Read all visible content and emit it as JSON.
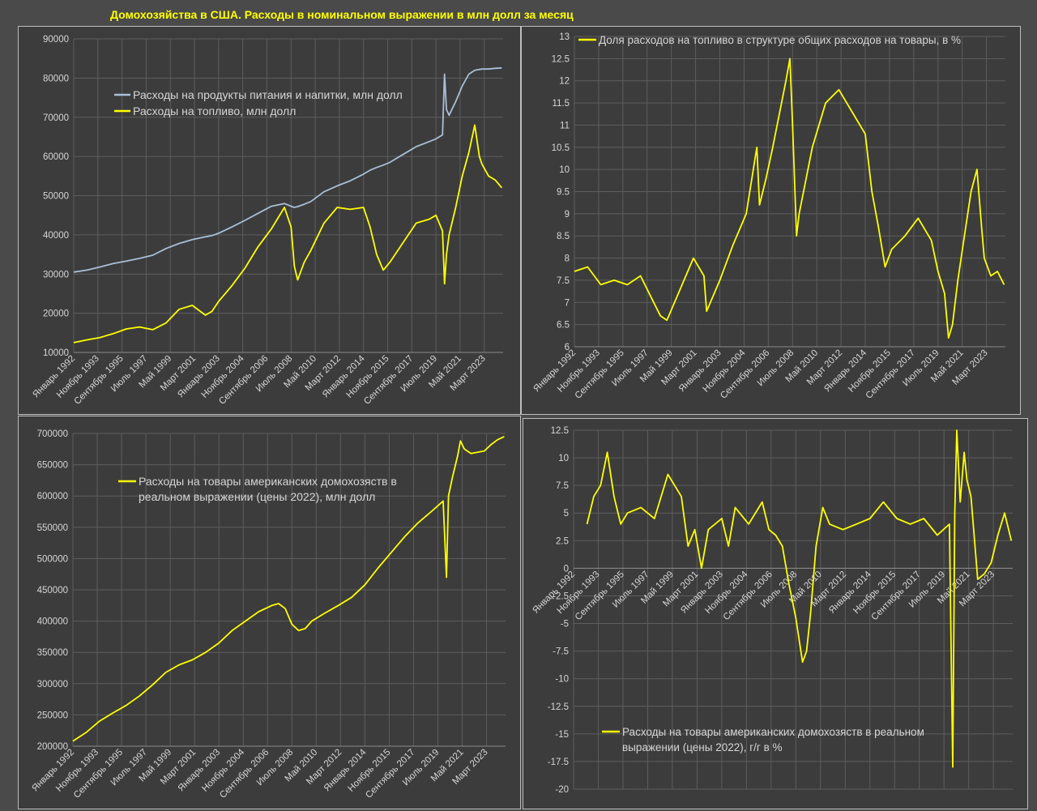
{
  "title": "Домохозяйства в США. Расходы в номинальном выражении в млн долл за месяц",
  "colors": {
    "yellow": "#ffff00",
    "blue": "#a9bfd8",
    "grid": "#5e5e5e",
    "text": "#d6d6d6"
  },
  "chart_data": [
    {
      "type": "line",
      "x_tick_labels": [
        "Январь 1992",
        "Ноябрь 1993",
        "Сентябрь 1995",
        "Июль 1997",
        "Май 1999",
        "Март 2001",
        "Январь 2003",
        "Ноябрь 2004",
        "Сентябрь 2006",
        "Июль 2008",
        "Май 2010",
        "Март 2012",
        "Январь 2014",
        "Ноябрь 2015",
        "Сентябрь 2017",
        "Июль 2019",
        "Май 2021",
        "Март 2023"
      ],
      "x": [
        1992.0,
        1993.0,
        1994.0,
        1995.0,
        1996.0,
        1997.0,
        1998.0,
        1999.0,
        2000.0,
        2001.0,
        2002.0,
        2002.5,
        2003.0,
        2004.0,
        2005.0,
        2006.0,
        2007.0,
        2008.0,
        2008.5,
        2008.75,
        2009.0,
        2009.5,
        2010.0,
        2011.0,
        2012.0,
        2013.0,
        2014.0,
        2014.5,
        2015.0,
        2015.5,
        2016.0,
        2017.0,
        2018.0,
        2019.0,
        2019.5,
        2020.0,
        2020.15,
        2020.3,
        2020.5,
        2021.0,
        2021.5,
        2022.0,
        2022.45,
        2022.8,
        2023.0,
        2023.5,
        2024.0,
        2024.5
      ],
      "ylim": [
        10000,
        90000
      ],
      "yticks": [
        10000,
        20000,
        30000,
        40000,
        50000,
        60000,
        70000,
        80000,
        90000
      ],
      "legend_position": "top-left",
      "series": [
        {
          "name": "Расходы на продукты питания и напитки, млн долл",
          "color": "#a9bfd8",
          "values": [
            30500,
            31000,
            31800,
            32700,
            33300,
            34000,
            34800,
            36500,
            37800,
            38800,
            39500,
            39800,
            40400,
            42000,
            43700,
            45500,
            47300,
            48000,
            47300,
            47000,
            47200,
            47800,
            48500,
            51000,
            52500,
            53800,
            55500,
            56500,
            57200,
            57800,
            58500,
            60500,
            62500,
            63800,
            64500,
            65500,
            81000,
            72000,
            70500,
            74000,
            78000,
            81000,
            82000,
            82200,
            82300,
            82300,
            82500,
            82600
          ]
        },
        {
          "name": "Расходы на топливо, млн долл",
          "color": "#ffff00",
          "values": [
            12500,
            13200,
            13800,
            14800,
            16000,
            16500,
            15800,
            17500,
            21000,
            22000,
            19500,
            20500,
            23000,
            27000,
            31500,
            37000,
            41500,
            47000,
            42000,
            32000,
            28500,
            33000,
            36000,
            43000,
            47000,
            46500,
            47000,
            42000,
            35000,
            31000,
            33000,
            38000,
            43000,
            44000,
            45000,
            41000,
            27500,
            35000,
            40000,
            47000,
            55000,
            61000,
            68000,
            60000,
            58000,
            55000,
            54000,
            52000
          ]
        }
      ]
    },
    {
      "type": "line",
      "x_tick_labels": [
        "Январь 1992",
        "Ноябрь 1993",
        "Сентябрь 1995",
        "Июль 1997",
        "Май 1999",
        "Март 2001",
        "Январь 2003",
        "Ноябрь 2004",
        "Сентябрь 2006",
        "Июль 2008",
        "Май 2010",
        "Март 2012",
        "Январь 2014",
        "Ноябрь 2015",
        "Сентябрь 2017",
        "Июль 2019",
        "Май 2021",
        "Март 2023"
      ],
      "x": [
        1992.0,
        1993.0,
        1994.0,
        1995.0,
        1996.0,
        1997.0,
        1998.0,
        1998.5,
        1999.0,
        2000.0,
        2001.0,
        2001.8,
        2002.0,
        2003.0,
        2004.0,
        2005.0,
        2005.8,
        2006.0,
        2006.5,
        2007.0,
        2008.0,
        2008.3,
        2008.5,
        2008.8,
        2009.0,
        2010.0,
        2011.0,
        2012.0,
        2013.0,
        2014.0,
        2014.5,
        2015.0,
        2015.5,
        2016.0,
        2017.0,
        2018.0,
        2019.0,
        2019.5,
        2020.0,
        2020.3,
        2020.6,
        2021.0,
        2021.5,
        2022.0,
        2022.45,
        2022.8,
        2023.0,
        2023.5,
        2024.0,
        2024.5
      ],
      "ylim": [
        6,
        13
      ],
      "yticks": [
        6,
        6.5,
        7,
        7.5,
        8,
        8.5,
        9,
        9.5,
        10,
        10.5,
        11,
        11.5,
        12,
        12.5,
        13
      ],
      "legend_position": "top",
      "series": [
        {
          "name": "Доля расходов на топливо в структуре общих расходов на товары, в %",
          "color": "#ffff00",
          "values": [
            7.7,
            7.8,
            7.4,
            7.5,
            7.4,
            7.6,
            7.0,
            6.7,
            6.6,
            7.3,
            8.0,
            7.6,
            6.8,
            7.5,
            8.3,
            9.0,
            10.5,
            9.2,
            9.8,
            10.5,
            12.0,
            12.5,
            11.0,
            8.5,
            9.0,
            10.5,
            11.5,
            11.8,
            11.3,
            10.8,
            9.5,
            8.7,
            7.8,
            8.2,
            8.5,
            8.9,
            8.4,
            7.7,
            7.2,
            6.2,
            6.5,
            7.5,
            8.5,
            9.5,
            10.0,
            8.7,
            8.0,
            7.6,
            7.7,
            7.4
          ]
        }
      ]
    },
    {
      "type": "line",
      "x_tick_labels": [
        "Январь 1992",
        "Ноябрь 1993",
        "Сентябрь 1995",
        "Июль 1997",
        "Май 1999",
        "Март 2001",
        "Январь 2003",
        "Ноябрь 2004",
        "Сентябрь 2006",
        "Июль 2008",
        "Май 2010",
        "Март 2012",
        "Январь 2014",
        "Ноябрь 2015",
        "Сентябрь 2017",
        "Июль 2019",
        "Май 2021",
        "Март 2023"
      ],
      "x": [
        1992.0,
        1993.0,
        1994.0,
        1995.0,
        1996.0,
        1997.0,
        1998.0,
        1999.0,
        2000.0,
        2001.0,
        2002.0,
        2003.0,
        2004.0,
        2005.0,
        2006.0,
        2007.0,
        2007.5,
        2008.0,
        2008.5,
        2009.0,
        2009.5,
        2010.0,
        2011.0,
        2012.0,
        2013.0,
        2014.0,
        2015.0,
        2016.0,
        2017.0,
        2018.0,
        2019.0,
        2019.9,
        2020.15,
        2020.3,
        2020.6,
        2021.0,
        2021.2,
        2021.5,
        2022.0,
        2023.0,
        2023.5,
        2024.0,
        2024.5
      ],
      "ylim": [
        200000,
        700000
      ],
      "yticks": [
        200000,
        250000,
        300000,
        350000,
        400000,
        450000,
        500000,
        550000,
        600000,
        650000,
        700000
      ],
      "legend_position": "top-left",
      "series": [
        {
          "name": "Расходы на товары американских домохозяств в реальном выражении (цены 2022), млн долл",
          "color": "#ffff00",
          "values": [
            208000,
            222000,
            240000,
            253000,
            265000,
            280000,
            298000,
            318000,
            330000,
            338000,
            350000,
            365000,
            385000,
            400000,
            415000,
            425000,
            428000,
            420000,
            395000,
            385000,
            388000,
            400000,
            413000,
            425000,
            438000,
            458000,
            485000,
            510000,
            535000,
            557000,
            575000,
            592000,
            470000,
            600000,
            630000,
            665000,
            688000,
            675000,
            668000,
            672000,
            682000,
            690000,
            695000
          ]
        }
      ]
    },
    {
      "type": "line",
      "x_tick_labels": [
        "Январь 1992",
        "Ноябрь 1993",
        "Сентябрь 1995",
        "Июль 1997",
        "Май 1999",
        "Март 2001",
        "Январь 2003",
        "Ноябрь 2004",
        "Сентябрь 2006",
        "Июль 2008",
        "Май 2010",
        "Март 2012",
        "Январь 2014",
        "Ноябрь 2015",
        "Сентябрь 2017",
        "Июль 2019",
        "Май 2021",
        "Март 2023"
      ],
      "x": [
        1993.0,
        1993.5,
        1994.0,
        1994.5,
        1995.0,
        1995.5,
        1996.0,
        1997.0,
        1998.0,
        1999.0,
        2000.0,
        2000.5,
        2001.0,
        2001.5,
        2002.0,
        2003.0,
        2003.5,
        2004.0,
        2005.0,
        2006.0,
        2006.5,
        2007.0,
        2007.5,
        2008.0,
        2008.5,
        2009.0,
        2009.3,
        2009.6,
        2010.0,
        2010.5,
        2011.0,
        2012.0,
        2013.0,
        2014.0,
        2015.0,
        2016.0,
        2017.0,
        2018.0,
        2019.0,
        2019.9,
        2020.15,
        2020.3,
        2020.45,
        2020.7,
        2021.0,
        2021.2,
        2021.5,
        2022.0,
        2022.5,
        2023.0,
        2023.5,
        2024.0,
        2024.5
      ],
      "ylim": [
        -20,
        12.5
      ],
      "yticks": [
        -20,
        -17.5,
        -15,
        -12.5,
        -10,
        -7.5,
        -5,
        -2.5,
        0,
        2.5,
        5,
        7.5,
        10,
        12.5
      ],
      "legend_position": "bottom-left",
      "series": [
        {
          "name": "Расходы на товары американских домохозяств в реальном выражении (цены 2022), г/г в %",
          "color": "#ffff00",
          "values": [
            4.0,
            6.5,
            7.5,
            10.5,
            6.5,
            4.0,
            5.0,
            5.5,
            4.5,
            8.5,
            6.5,
            2.0,
            3.5,
            0.0,
            3.5,
            4.5,
            2.0,
            5.5,
            4.0,
            6.0,
            3.5,
            3.0,
            2.0,
            -1.5,
            -4.5,
            -8.5,
            -7.5,
            -4.0,
            2.0,
            5.5,
            4.0,
            3.5,
            4.0,
            4.5,
            6.0,
            4.5,
            4.0,
            4.5,
            3.0,
            4.0,
            -18.0,
            5.0,
            12.5,
            6.0,
            10.5,
            8.0,
            6.5,
            -1.0,
            -0.5,
            0.5,
            3.0,
            5.0,
            2.5
          ]
        }
      ]
    }
  ]
}
